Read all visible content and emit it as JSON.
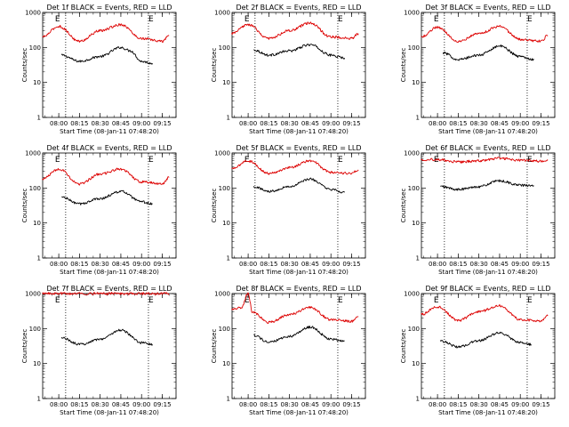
{
  "figure": {
    "ylabel": "Counts/sec",
    "xlabel": "Start Time (08-Jan-11 07:48:20)",
    "y_ticks": [
      "1",
      "10",
      "100",
      "1000"
    ],
    "x_ticks": [
      "08:00",
      "08:15",
      "08:30",
      "08:45",
      "09:00",
      "09:15"
    ],
    "series_colors": {
      "events": "#000000",
      "lld": "#dd0000"
    }
  },
  "chart_data": [
    {
      "type": "line",
      "title": "Det 1f BLACK = Events, RED = LLD",
      "xlabel": "Start Time (08-Jan-11 07:48:20)",
      "ylabel": "Counts/sec",
      "x_range": [
        "07:48:20",
        "09:25"
      ],
      "ylim": [
        1,
        1000
      ],
      "y_scale": "log",
      "vlines": [
        "08:05",
        "09:05"
      ],
      "markers": [
        "E",
        "E"
      ],
      "series": [
        {
          "color": "#000000",
          "x": [
            "08:02",
            "08:15",
            "08:30",
            "08:45",
            "08:52",
            "09:00",
            "09:08"
          ],
          "values": [
            60,
            40,
            55,
            100,
            80,
            40,
            35
          ]
        },
        {
          "color": "#dd0000",
          "x": [
            "07:48",
            "08:00",
            "08:15",
            "08:30",
            "08:45",
            "09:00",
            "09:15",
            "09:20"
          ],
          "values": [
            200,
            400,
            150,
            300,
            450,
            180,
            150,
            220
          ]
        }
      ]
    },
    {
      "type": "line",
      "title": "Det 2f BLACK = Events, RED = LLD",
      "xlabel": "Start Time (08-Jan-11 07:48:20)",
      "ylabel": "Counts/sec",
      "x_range": [
        "07:48:20",
        "09:25"
      ],
      "ylim": [
        1,
        1000
      ],
      "y_scale": "log",
      "vlines": [
        "08:05",
        "09:05"
      ],
      "markers": [
        "E",
        "E"
      ],
      "series": [
        {
          "color": "#000000",
          "x": [
            "08:04",
            "08:15",
            "08:30",
            "08:45",
            "09:00",
            "09:10"
          ],
          "values": [
            85,
            60,
            80,
            120,
            60,
            50
          ]
        },
        {
          "color": "#dd0000",
          "x": [
            "07:48",
            "08:00",
            "08:15",
            "08:30",
            "08:45",
            "09:00",
            "09:15",
            "09:20"
          ],
          "values": [
            250,
            450,
            180,
            300,
            500,
            200,
            180,
            250
          ]
        }
      ]
    },
    {
      "type": "line",
      "title": "Det 3f BLACK = Events, RED = LLD",
      "xlabel": "Start Time (08-Jan-11 07:48:20)",
      "ylabel": "Counts/sec",
      "x_range": [
        "07:48:20",
        "09:25"
      ],
      "ylim": [
        1,
        1000
      ],
      "y_scale": "log",
      "vlines": [
        "08:05",
        "09:05"
      ],
      "markers": [
        "E",
        "E"
      ],
      "series": [
        {
          "color": "#000000",
          "x": [
            "08:04",
            "08:15",
            "08:30",
            "08:45",
            "09:00",
            "09:10"
          ],
          "values": [
            70,
            45,
            60,
            110,
            55,
            45
          ]
        },
        {
          "color": "#dd0000",
          "x": [
            "07:48",
            "08:00",
            "08:15",
            "08:30",
            "08:45",
            "09:00",
            "09:15",
            "09:20"
          ],
          "values": [
            200,
            380,
            150,
            250,
            400,
            170,
            150,
            220
          ]
        }
      ]
    },
    {
      "type": "line",
      "title": "Det 4f BLACK = Events, RED = LLD",
      "xlabel": "Start Time (08-Jan-11 07:48:20)",
      "ylabel": "Counts/sec",
      "x_range": [
        "07:48:20",
        "09:25"
      ],
      "ylim": [
        1,
        1000
      ],
      "y_scale": "log",
      "vlines": [
        "08:05",
        "09:05"
      ],
      "markers": [
        "E",
        "E"
      ],
      "series": [
        {
          "color": "#000000",
          "x": [
            "08:02",
            "08:15",
            "08:30",
            "08:45",
            "09:00",
            "09:08"
          ],
          "values": [
            55,
            35,
            50,
            80,
            40,
            35
          ]
        },
        {
          "color": "#dd0000",
          "x": [
            "07:48",
            "08:00",
            "08:15",
            "08:30",
            "08:45",
            "09:00",
            "09:15",
            "09:20"
          ],
          "values": [
            180,
            350,
            130,
            250,
            350,
            150,
            130,
            200
          ]
        }
      ]
    },
    {
      "type": "line",
      "title": "Det 5f BLACK = Events, RED = LLD",
      "xlabel": "Start Time (08-Jan-11 07:48:20)",
      "ylabel": "Counts/sec",
      "x_range": [
        "07:48:20",
        "09:25"
      ],
      "ylim": [
        1,
        1000
      ],
      "y_scale": "log",
      "vlines": [
        "08:05",
        "09:05"
      ],
      "markers": [
        "E",
        "E"
      ],
      "series": [
        {
          "color": "#000000",
          "x": [
            "08:04",
            "08:15",
            "08:30",
            "08:45",
            "09:00",
            "09:10"
          ],
          "values": [
            110,
            80,
            110,
            180,
            90,
            75
          ]
        },
        {
          "color": "#dd0000",
          "x": [
            "07:48",
            "08:00",
            "08:15",
            "08:30",
            "08:45",
            "09:00",
            "09:15",
            "09:20"
          ],
          "values": [
            350,
            600,
            260,
            380,
            600,
            280,
            260,
            330
          ]
        }
      ]
    },
    {
      "type": "line",
      "title": "Det 6f BLACK = Events, RED = LLD",
      "xlabel": "Start Time (08-Jan-11 07:48:20)",
      "ylabel": "Counts/sec",
      "x_range": [
        "07:48:20",
        "09:25"
      ],
      "ylim": [
        1,
        1000
      ],
      "y_scale": "log",
      "vlines": [
        "08:05",
        "09:05"
      ],
      "markers": [
        "E",
        "E"
      ],
      "series": [
        {
          "color": "#000000",
          "x": [
            "08:02",
            "08:15",
            "08:30",
            "08:45",
            "09:00",
            "09:10"
          ],
          "values": [
            110,
            90,
            110,
            160,
            120,
            115
          ]
        },
        {
          "color": "#dd0000",
          "x": [
            "07:48",
            "08:00",
            "08:15",
            "08:30",
            "08:45",
            "09:00",
            "09:15",
            "09:20"
          ],
          "values": [
            650,
            650,
            550,
            600,
            700,
            620,
            580,
            620
          ]
        }
      ]
    },
    {
      "type": "line",
      "title": "Det 7f BLACK = Events, RED = LLD",
      "xlabel": "Start Time (08-Jan-11 07:48:20)",
      "ylabel": "Counts/sec",
      "x_range": [
        "07:48:20",
        "09:25"
      ],
      "ylim": [
        1,
        1000
      ],
      "y_scale": "log",
      "vlines": [
        "08:05",
        "09:05"
      ],
      "markers": [
        "E",
        "E"
      ],
      "series": [
        {
          "color": "#000000",
          "x": [
            "08:02",
            "08:15",
            "08:30",
            "08:45",
            "09:00",
            "09:08"
          ],
          "values": [
            55,
            35,
            50,
            90,
            40,
            35
          ]
        },
        {
          "color": "#dd0000",
          "x": [
            "07:48",
            "08:00",
            "08:15",
            "08:30",
            "08:45",
            "09:00",
            "09:15",
            "09:20"
          ],
          "values": [
            1000,
            1000,
            1000,
            1000,
            1000,
            1000,
            1000,
            1000
          ]
        }
      ]
    },
    {
      "type": "line",
      "title": "Det 8f BLACK = Events, RED = LLD",
      "xlabel": "Start Time (08-Jan-11 07:48:20)",
      "ylabel": "Counts/sec",
      "x_range": [
        "07:48:20",
        "09:25"
      ],
      "ylim": [
        1,
        1000
      ],
      "y_scale": "log",
      "vlines": [
        "08:05",
        "09:05"
      ],
      "markers": [
        "E",
        "E"
      ],
      "series": [
        {
          "color": "#000000",
          "x": [
            "08:04",
            "08:15",
            "08:30",
            "08:45",
            "09:00",
            "09:10"
          ],
          "values": [
            65,
            40,
            60,
            110,
            50,
            45
          ]
        },
        {
          "color": "#dd0000",
          "x": [
            "07:48",
            "07:55",
            "08:00",
            "08:03",
            "08:15",
            "08:30",
            "08:45",
            "09:00",
            "09:15",
            "09:20"
          ],
          "values": [
            350,
            400,
            1000,
            300,
            150,
            250,
            400,
            180,
            160,
            220
          ]
        }
      ]
    },
    {
      "type": "line",
      "title": "Det 9f BLACK = Events, RED = LLD",
      "xlabel": "Start Time (08-Jan-11 07:48:20)",
      "ylabel": "Counts/sec",
      "x_range": [
        "07:48:20",
        "09:25"
      ],
      "ylim": [
        1,
        1000
      ],
      "y_scale": "log",
      "vlines": [
        "08:05",
        "09:05"
      ],
      "markers": [
        "E",
        "E"
      ],
      "series": [
        {
          "color": "#000000",
          "x": [
            "08:02",
            "08:15",
            "08:30",
            "08:45",
            "09:00",
            "09:08"
          ],
          "values": [
            45,
            30,
            45,
            75,
            40,
            35
          ]
        },
        {
          "color": "#dd0000",
          "x": [
            "07:48",
            "08:00",
            "08:15",
            "08:30",
            "08:45",
            "09:00",
            "09:15",
            "09:20"
          ],
          "values": [
            250,
            420,
            170,
            300,
            450,
            180,
            160,
            230
          ]
        }
      ]
    }
  ]
}
